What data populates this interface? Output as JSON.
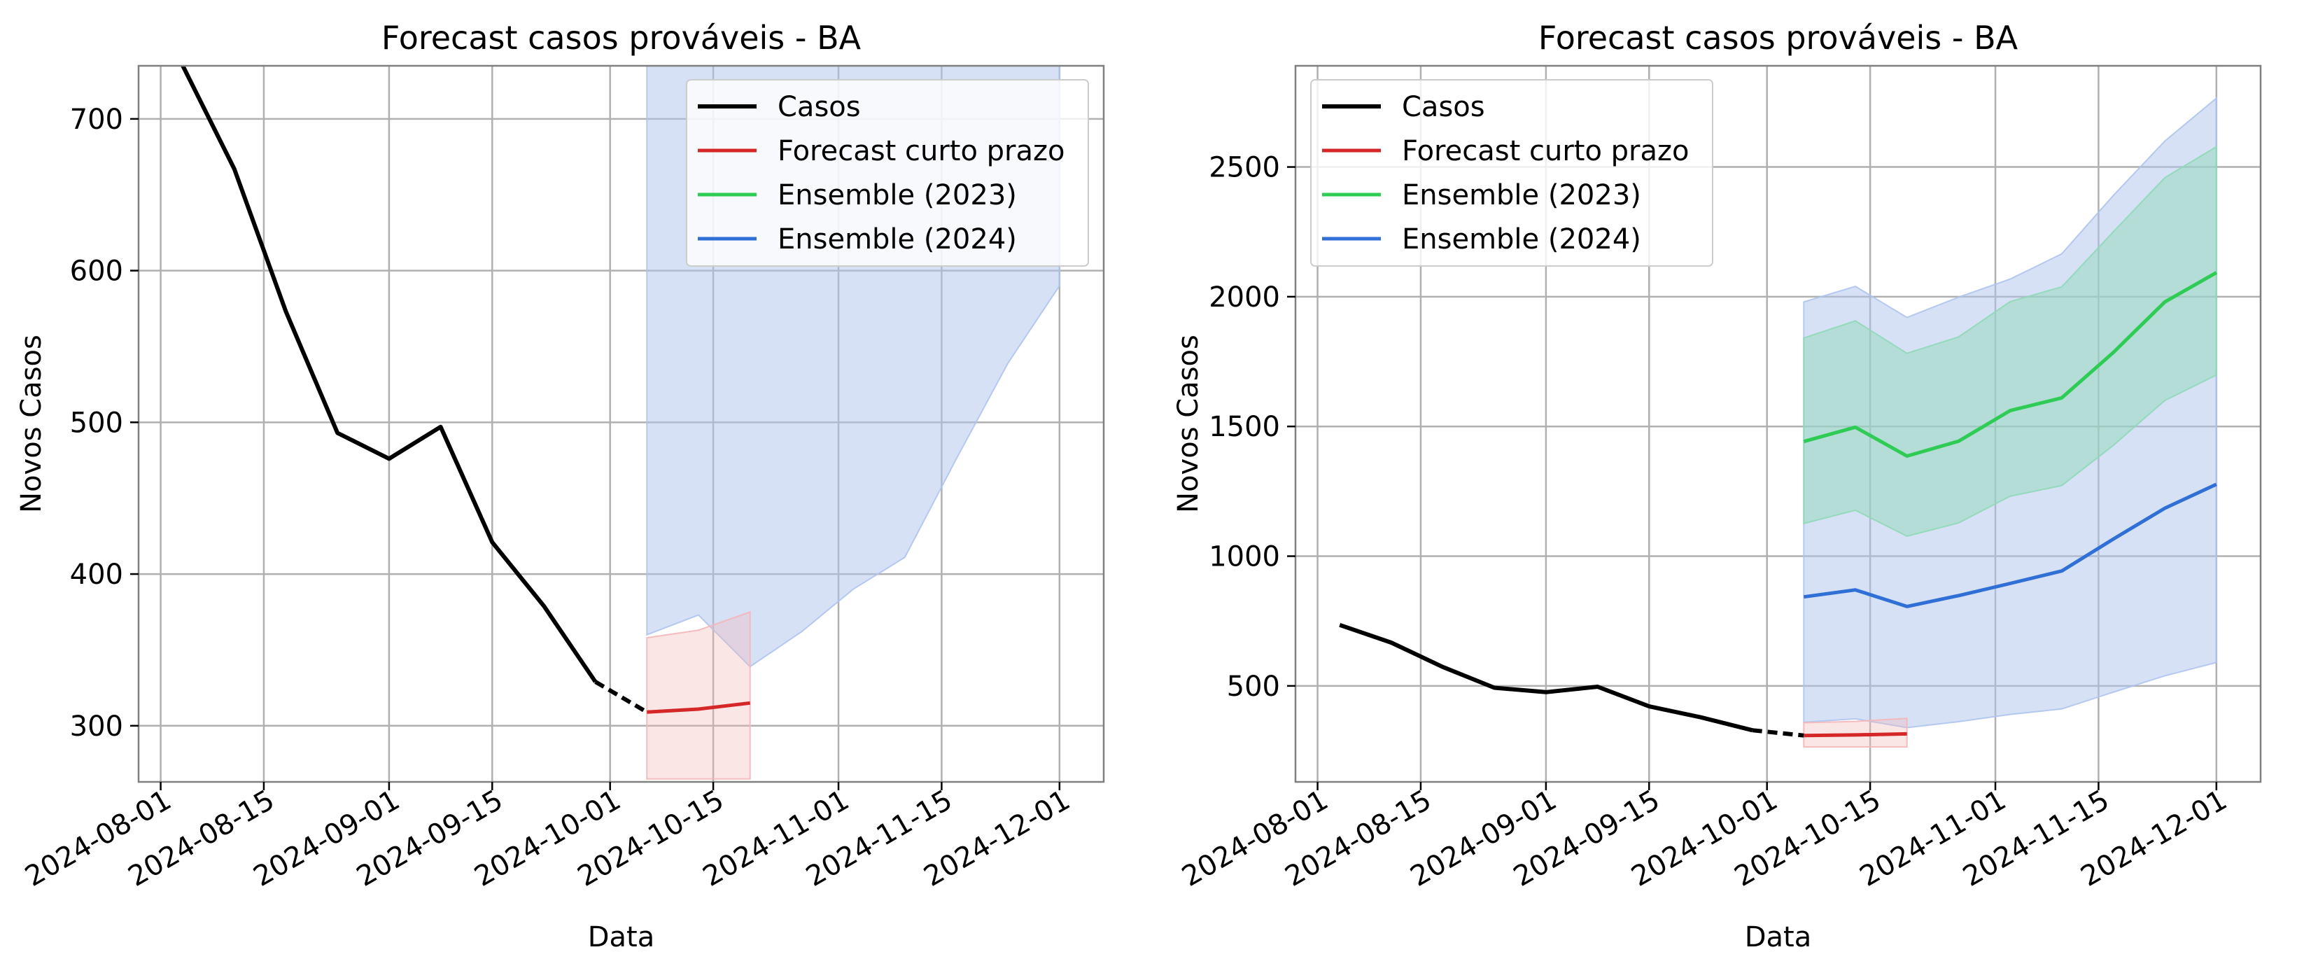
{
  "colors": {
    "casos": "#000000",
    "forecast_curto": "#d62728",
    "ensemble_2023": "#2ecc55",
    "ensemble_2024": "#2f6fd6",
    "band_2024": "#aec4ee",
    "band_2023": "#8fd9b6",
    "band_forecast": "#f4b6b8",
    "grid": "#b0b0b0"
  },
  "chart_data": [
    {
      "type": "line",
      "title": "Forecast casos prováveis - BA",
      "xlabel": "Data",
      "ylabel": "Novos Casos",
      "x_type": "date",
      "xlim": [
        "2024-07-29",
        "2024-12-07"
      ],
      "ylim": [
        263,
        735
      ],
      "xticks": [
        "2024-08-01",
        "2024-08-15",
        "2024-09-01",
        "2024-09-15",
        "2024-10-01",
        "2024-10-15",
        "2024-11-01",
        "2024-11-15",
        "2024-12-01"
      ],
      "yticks": [
        300,
        400,
        500,
        600,
        700
      ],
      "grid": true,
      "legend_position": "top-right",
      "legend": [
        "Casos",
        "Forecast curto prazo",
        "Ensemble (2023)",
        "Ensemble (2024)"
      ],
      "series": [
        {
          "name": "Casos",
          "color_key": "casos",
          "width": 3,
          "x": [
            "2024-08-01",
            "2024-08-04",
            "2024-08-11",
            "2024-08-18",
            "2024-08-25",
            "2024-09-01",
            "2024-09-08",
            "2024-09-15",
            "2024-09-22",
            "2024-09-29"
          ],
          "y": [
            760,
            735,
            667,
            573,
            493,
            476,
            497,
            421,
            379,
            329
          ]
        },
        {
          "name": "",
          "color_key": "casos",
          "width": 3,
          "dash": "14,8",
          "x": [
            "2024-09-29",
            "2024-10-06"
          ],
          "y": [
            329,
            309
          ]
        },
        {
          "name": "Forecast curto prazo",
          "color_key": "forecast_curto",
          "width": 2.5,
          "x": [
            "2024-10-06",
            "2024-10-13",
            "2024-10-20"
          ],
          "y": [
            309,
            311,
            315
          ]
        },
        {
          "name": "Ensemble (2023)",
          "color_key": "ensemble_2023",
          "width": 2.5,
          "x": [
            "2024-10-06",
            "2024-10-13",
            "2024-10-20",
            "2024-10-27",
            "2024-11-03",
            "2024-11-10",
            "2024-11-17",
            "2024-11-24",
            "2024-12-01"
          ],
          "y": [
            1442,
            1497,
            1386,
            1443,
            1561,
            1610,
            1785,
            1980,
            2093
          ]
        },
        {
          "name": "Ensemble (2024)",
          "color_key": "ensemble_2024",
          "width": 2.5,
          "x": [
            "2024-10-06",
            "2024-10-13",
            "2024-10-20",
            "2024-10-27",
            "2024-11-03",
            "2024-11-10",
            "2024-11-17",
            "2024-11-24",
            "2024-12-01"
          ],
          "y": [
            843,
            870,
            806,
            848,
            895,
            943,
            1066,
            1185,
            1277
          ]
        }
      ],
      "bands": [
        {
          "color_key": "band_2024",
          "opacity": 0.5,
          "x": [
            "2024-10-06",
            "2024-10-13",
            "2024-10-20",
            "2024-10-27",
            "2024-11-03",
            "2024-11-10",
            "2024-11-17",
            "2024-11-24",
            "2024-12-01"
          ],
          "lower": [
            360,
            373,
            339,
            362,
            390,
            411,
            476,
            539,
            590
          ],
          "upper": [
            1980,
            2040,
            1920,
            1998,
            2068,
            2165,
            2390,
            2600,
            2765
          ]
        },
        {
          "color_key": "band_2023",
          "opacity": 0.5,
          "x": [
            "2024-10-06",
            "2024-10-13",
            "2024-10-20",
            "2024-10-27",
            "2024-11-03",
            "2024-11-10",
            "2024-11-17",
            "2024-11-24",
            "2024-12-01"
          ],
          "lower": [
            1126,
            1177,
            1077,
            1128,
            1231,
            1272,
            1427,
            1600,
            1698
          ],
          "upper": [
            1841,
            1907,
            1782,
            1845,
            1981,
            2038,
            2250,
            2459,
            2578
          ]
        },
        {
          "color_key": "band_forecast",
          "opacity": 0.35,
          "x": [
            "2024-10-06",
            "2024-10-13",
            "2024-10-20"
          ],
          "lower": [
            265,
            265,
            265
          ],
          "upper": [
            358,
            363,
            375
          ]
        }
      ]
    },
    {
      "type": "line",
      "title": "Forecast casos prováveis - BA",
      "xlabel": "Data",
      "ylabel": "Novos Casos",
      "x_type": "date",
      "xlim": [
        "2024-07-29",
        "2024-12-07"
      ],
      "ylim": [
        130,
        2890
      ],
      "xticks": [
        "2024-08-01",
        "2024-08-15",
        "2024-09-01",
        "2024-09-15",
        "2024-10-01",
        "2024-10-15",
        "2024-11-01",
        "2024-11-15",
        "2024-12-01"
      ],
      "yticks": [
        500,
        1000,
        1500,
        2000,
        2500
      ],
      "grid": true,
      "legend_position": "top-left",
      "legend": [
        "Casos",
        "Forecast curto prazo",
        "Ensemble (2023)",
        "Ensemble (2024)"
      ],
      "series": [
        {
          "name": "Casos",
          "color_key": "casos",
          "width": 3,
          "x": [
            "2024-08-04",
            "2024-08-11",
            "2024-08-18",
            "2024-08-25",
            "2024-09-01",
            "2024-09-08",
            "2024-09-15",
            "2024-09-22",
            "2024-09-29"
          ],
          "y": [
            735,
            667,
            573,
            493,
            476,
            497,
            421,
            379,
            329
          ]
        },
        {
          "name": "",
          "color_key": "casos",
          "width": 3,
          "dash": "14,8",
          "x": [
            "2024-09-29",
            "2024-10-06"
          ],
          "y": [
            329,
            309
          ]
        },
        {
          "name": "Forecast curto prazo",
          "color_key": "forecast_curto",
          "width": 2.5,
          "x": [
            "2024-10-06",
            "2024-10-13",
            "2024-10-20"
          ],
          "y": [
            309,
            311,
            315
          ]
        },
        {
          "name": "Ensemble (2023)",
          "color_key": "ensemble_2023",
          "width": 2.5,
          "x": [
            "2024-10-06",
            "2024-10-13",
            "2024-10-20",
            "2024-10-27",
            "2024-11-03",
            "2024-11-10",
            "2024-11-17",
            "2024-11-24",
            "2024-12-01"
          ],
          "y": [
            1442,
            1497,
            1386,
            1443,
            1561,
            1610,
            1785,
            1980,
            2093
          ]
        },
        {
          "name": "Ensemble (2024)",
          "color_key": "ensemble_2024",
          "width": 2.5,
          "x": [
            "2024-10-06",
            "2024-10-13",
            "2024-10-20",
            "2024-10-27",
            "2024-11-03",
            "2024-11-10",
            "2024-11-17",
            "2024-11-24",
            "2024-12-01"
          ],
          "y": [
            843,
            870,
            806,
            848,
            895,
            943,
            1066,
            1185,
            1277
          ]
        }
      ],
      "bands": [
        {
          "color_key": "band_2024",
          "opacity": 0.5,
          "x": [
            "2024-10-06",
            "2024-10-13",
            "2024-10-20",
            "2024-10-27",
            "2024-11-03",
            "2024-11-10",
            "2024-11-17",
            "2024-11-24",
            "2024-12-01"
          ],
          "lower": [
            360,
            373,
            339,
            362,
            390,
            411,
            476,
            539,
            590
          ],
          "upper": [
            1980,
            2040,
            1920,
            1998,
            2068,
            2165,
            2390,
            2600,
            2765
          ]
        },
        {
          "color_key": "band_2023",
          "opacity": 0.5,
          "x": [
            "2024-10-06",
            "2024-10-13",
            "2024-10-20",
            "2024-10-27",
            "2024-11-03",
            "2024-11-10",
            "2024-11-17",
            "2024-11-24",
            "2024-12-01"
          ],
          "lower": [
            1126,
            1177,
            1077,
            1128,
            1231,
            1272,
            1427,
            1600,
            1698
          ],
          "upper": [
            1841,
            1907,
            1782,
            1845,
            1981,
            2038,
            2250,
            2459,
            2578
          ]
        },
        {
          "color_key": "band_forecast",
          "opacity": 0.35,
          "x": [
            "2024-10-06",
            "2024-10-13",
            "2024-10-20"
          ],
          "lower": [
            265,
            265,
            265
          ],
          "upper": [
            358,
            363,
            375
          ]
        }
      ]
    }
  ]
}
